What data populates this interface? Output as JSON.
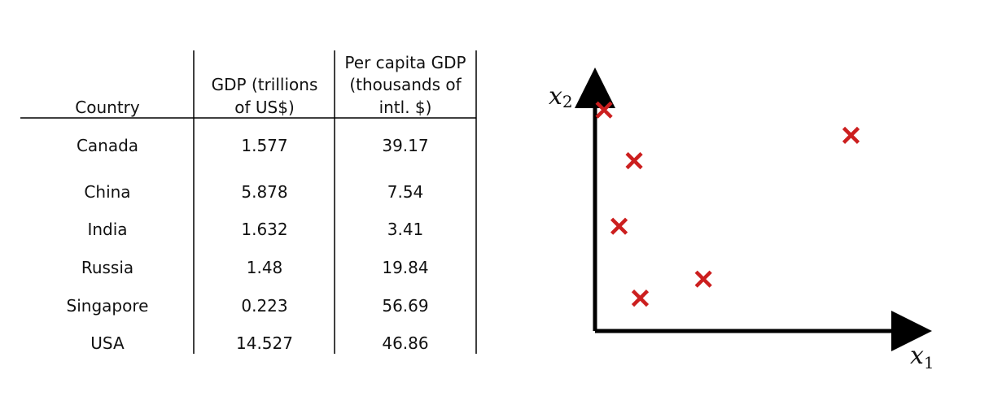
{
  "table": {
    "columns": [
      "Country",
      "GDP (trillions of US$)",
      "Per capita GDP (thousands of intl. $)"
    ],
    "rows": [
      [
        "Canada",
        "1.577",
        "39.17"
      ],
      [
        "China",
        "5.878",
        "7.54"
      ],
      [
        "India",
        "1.632",
        "3.41"
      ],
      [
        "Russia",
        "1.48",
        "19.84"
      ],
      [
        "Singapore",
        "0.223",
        "56.69"
      ],
      [
        "USA",
        "14.527",
        "46.86"
      ]
    ]
  },
  "chart_data": {
    "type": "scatter",
    "xlabel": "x",
    "xlabel_sub": "1",
    "ylabel": "x",
    "ylabel_sub": "2",
    "xlim": [
      0,
      1
    ],
    "ylim": [
      0,
      1
    ],
    "grid": false,
    "marker": "x",
    "marker_color": "#cc1f1f",
    "axis_color": "#000000",
    "points": [
      {
        "x": 0.03,
        "y": 0.98
      },
      {
        "x": 0.13,
        "y": 0.74
      },
      {
        "x": 0.08,
        "y": 0.43
      },
      {
        "x": 0.15,
        "y": 0.09
      },
      {
        "x": 0.36,
        "y": 0.18
      },
      {
        "x": 0.85,
        "y": 0.86
      }
    ]
  }
}
